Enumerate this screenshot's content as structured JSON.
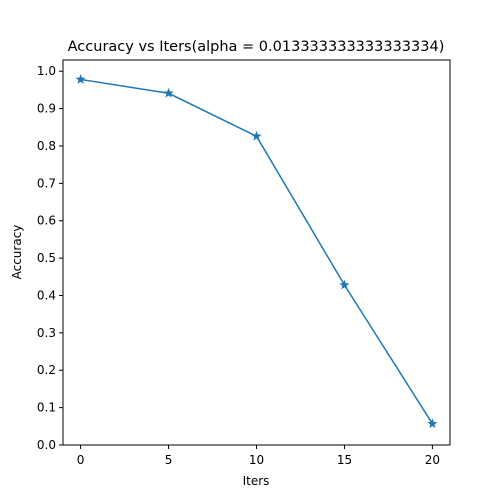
{
  "chart_data": {
    "type": "line",
    "title": "Accuracy vs Iters(alpha = 0.013333333333333334)",
    "xlabel": "Iters",
    "ylabel": "Accuracy",
    "x": [
      0,
      5,
      10,
      15,
      20
    ],
    "series": [
      {
        "values": [
          0.978,
          0.941,
          0.826,
          0.428,
          0.057
        ],
        "marker": "star",
        "color": "#1f77b4"
      }
    ],
    "xlim": [
      -1,
      21
    ],
    "ylim": [
      0.0,
      1.03
    ],
    "xticks": [
      "0",
      "5",
      "10",
      "15",
      "20"
    ],
    "yticks": [
      "0.0",
      "0.1",
      "0.2",
      "0.3",
      "0.4",
      "0.5",
      "0.6",
      "0.7",
      "0.8",
      "0.9",
      "1.0"
    ],
    "grid": false,
    "legend": false
  }
}
